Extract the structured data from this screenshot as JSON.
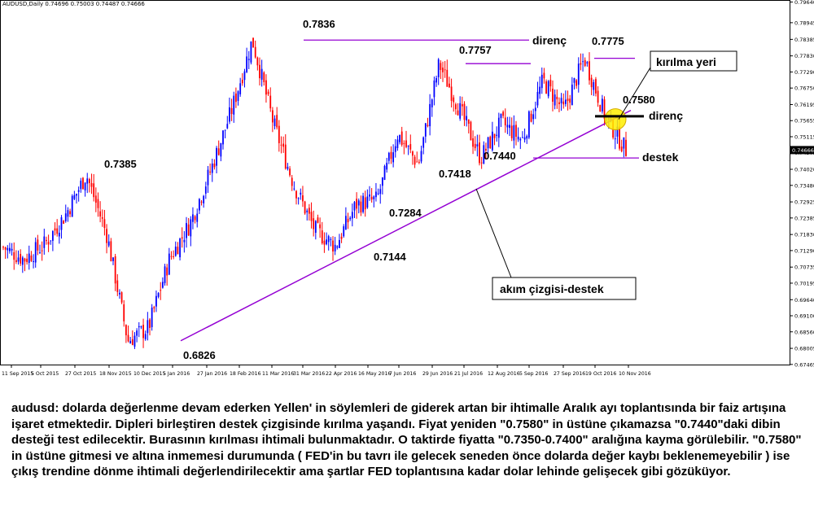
{
  "chart_data": {
    "type": "candlestick",
    "symbol_header": "AUDUSD,Daily  0.74696 0.75003 0.74487 0.74666",
    "current_price_label": "0.74666",
    "ylim": [
      0.6746,
      0.7968
    ],
    "y_ticks": [
      "0.79640",
      "0.78945",
      "0.78385",
      "0.77830",
      "0.77290",
      "0.76750",
      "0.76195",
      "0.75655",
      "0.75115",
      "0.74575",
      "0.74020",
      "0.73480",
      "0.72925",
      "0.72385",
      "0.71830",
      "0.71290",
      "0.70735",
      "0.70195",
      "0.69640",
      "0.69100",
      "0.68560",
      "0.68005",
      "0.67465"
    ],
    "x_ticks": [
      "11 Sep 2015",
      "5 Oct 2015",
      "27 Oct 2015",
      "18 Nov 2015",
      "10 Dec 2015",
      "5 Jan 2016",
      "27 Jan 2016",
      "18 Feb 2016",
      "11 Mar 2016",
      "31 Mar 2016",
      "22 Apr 2016",
      "16 May 2016",
      "7 Jun 2016",
      "29 Jun 2016",
      "21 Jul 2016",
      "12 Aug 2016",
      "5 Sep 2016",
      "27 Sep 2016",
      "19 Oct 2016",
      "10 Nov 2016"
    ],
    "pivots": [
      0.714,
      0.71,
      0.715,
      0.725,
      0.7385,
      0.718,
      0.6826,
      0.687,
      0.71,
      0.722,
      0.74,
      0.76,
      0.7836,
      0.756,
      0.735,
      0.72,
      0.7144,
      0.7284,
      0.73,
      0.752,
      0.7418,
      0.7757,
      0.76,
      0.744,
      0.756,
      0.75,
      0.77,
      0.76,
      0.7775,
      0.758,
      0.7467
    ],
    "levels": [
      {
        "value": 0.7836,
        "label": "direnç"
      },
      {
        "value": 0.7757,
        "label": ""
      },
      {
        "value": 0.7775,
        "label": ""
      },
      {
        "value": 0.758,
        "label": "direnç"
      },
      {
        "value": 0.744,
        "label": "destek"
      }
    ],
    "trendline": {
      "from": [
        0.6826
      ],
      "to": [
        0.76
      ],
      "label": "akım çizgisi-destek"
    },
    "break_label": "kırılma yeri",
    "annotations": [
      "0.7836",
      "0.7757",
      "0.7775",
      "0.7580",
      "0.7385",
      "0.6826",
      "0.7284",
      "0.7144",
      "0.7418",
      "0.7440"
    ]
  },
  "commentary": "audusd: dolarda değerlenme devam ederken Yellen' in söylemleri de giderek artan bir ihtimalle Aralık ayı toplantısında bir faiz artışına işaret etmektedir. Dipleri birleştiren destek çizgisinde kırılma yaşandı. Fiyat yeniden \"0.7580\" in üstüne çıkamazsa \"0.7440\"daki dibin desteği test edilecektir. Burasının kırılması ihtimali bulunmaktadır. O taktirde fiyatta \"0.7350-0.7400\" aralığına kayma görülebilir. \"0.7580\" in üstüne gitmesi ve altına inmemesi durumunda ( FED'in bu tavrı ile gelecek seneden önce dolarda değer kaybı beklenemeyebilir ) ise çıkış trendine dönme ihtimali değerlendirilecektir ama şartlar FED toplantısına kadar dolar lehinde gelişecek gibi gözüküyor.",
  "colors": {
    "bull": "#0000ff",
    "bear": "#ff0000",
    "level": "#9400d3",
    "trend": "#9400d3",
    "highlight": "#ffee00"
  }
}
